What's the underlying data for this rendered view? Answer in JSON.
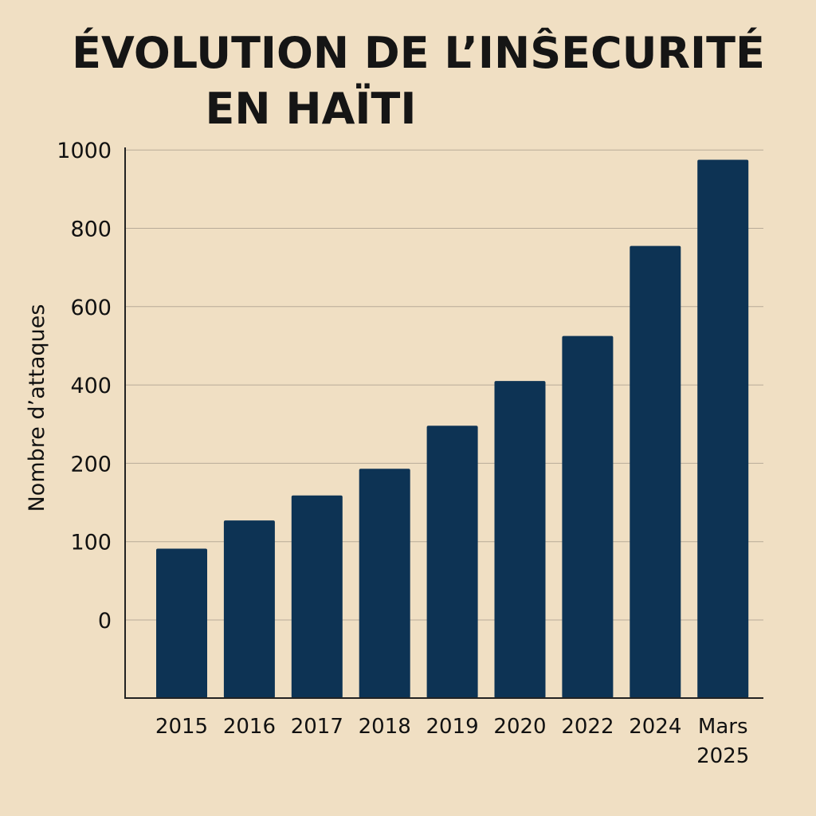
{
  "chart_data": {
    "type": "bar",
    "title": [
      "ÉVOLUTION DE L’INŜECURITÉ",
      "EN HAÏTI"
    ],
    "xlabel": "",
    "ylabel": "Nombre d’attaques",
    "categories": [
      [
        "2015"
      ],
      [
        "2016"
      ],
      [
        "2017"
      ],
      [
        "2018"
      ],
      [
        "2019"
      ],
      [
        "2020"
      ],
      [
        "2022"
      ],
      [
        "2024"
      ],
      [
        "Mars",
        "2025"
      ]
    ],
    "values": [
      91,
      127,
      159,
      193,
      296,
      410,
      525,
      755,
      975
    ],
    "yticks": [
      0,
      100,
      200,
      400,
      600,
      800,
      1000
    ],
    "ylim": [
      0,
      1000
    ],
    "grid": true,
    "colors": {
      "bar": "#0d3354",
      "background": "#f0dfc3",
      "grid": "#b8ab98"
    }
  }
}
